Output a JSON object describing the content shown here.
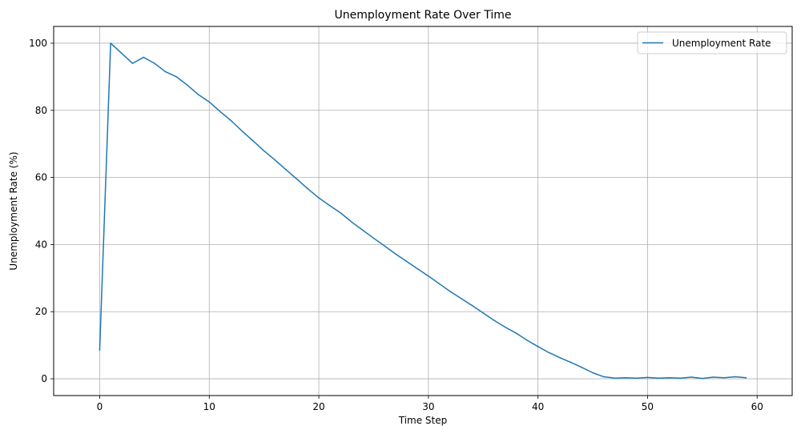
{
  "chart_data": {
    "type": "line",
    "title": "Unemployment Rate Over Time",
    "xlabel": "Time Step",
    "ylabel": "Unemployment Rate (%)",
    "xlim": [
      -4.2,
      63.2
    ],
    "ylim": [
      -5,
      105
    ],
    "xticks": [
      0,
      10,
      20,
      30,
      40,
      50,
      60
    ],
    "yticks": [
      0,
      20,
      40,
      60,
      80,
      100
    ],
    "grid": true,
    "legend_position": "top-right",
    "series": [
      {
        "name": "Unemployment Rate",
        "color": "#1f77b4",
        "x": [
          0,
          1,
          2,
          3,
          4,
          5,
          6,
          7,
          8,
          9,
          10,
          11,
          12,
          13,
          14,
          15,
          16,
          17,
          18,
          19,
          20,
          21,
          22,
          23,
          24,
          25,
          26,
          27,
          28,
          29,
          30,
          31,
          32,
          33,
          34,
          35,
          36,
          37,
          38,
          39,
          40,
          41,
          42,
          43,
          44,
          45,
          46,
          47,
          48,
          49,
          50,
          51,
          52,
          53,
          54,
          55,
          56,
          57,
          58,
          59
        ],
        "y": [
          8.5,
          100,
          97,
          94,
          95.8,
          94,
          91.5,
          90,
          87.5,
          84.7,
          82.5,
          79.6,
          76.9,
          73.8,
          70.9,
          67.9,
          65.2,
          62.3,
          59.5,
          56.6,
          53.9,
          51.6,
          49.4,
          46.7,
          44.3,
          41.9,
          39.6,
          37.2,
          35,
          32.8,
          30.6,
          28.3,
          26,
          23.9,
          21.8,
          19.6,
          17.4,
          15.4,
          13.6,
          11.5,
          9.6,
          7.8,
          6.3,
          4.9,
          3.4,
          1.8,
          0.6,
          0.2,
          0.3,
          0.2,
          0.4,
          0.2,
          0.3,
          0.2,
          0.5,
          0.1,
          0.5,
          0.3,
          0.6,
          0.3
        ]
      }
    ]
  }
}
